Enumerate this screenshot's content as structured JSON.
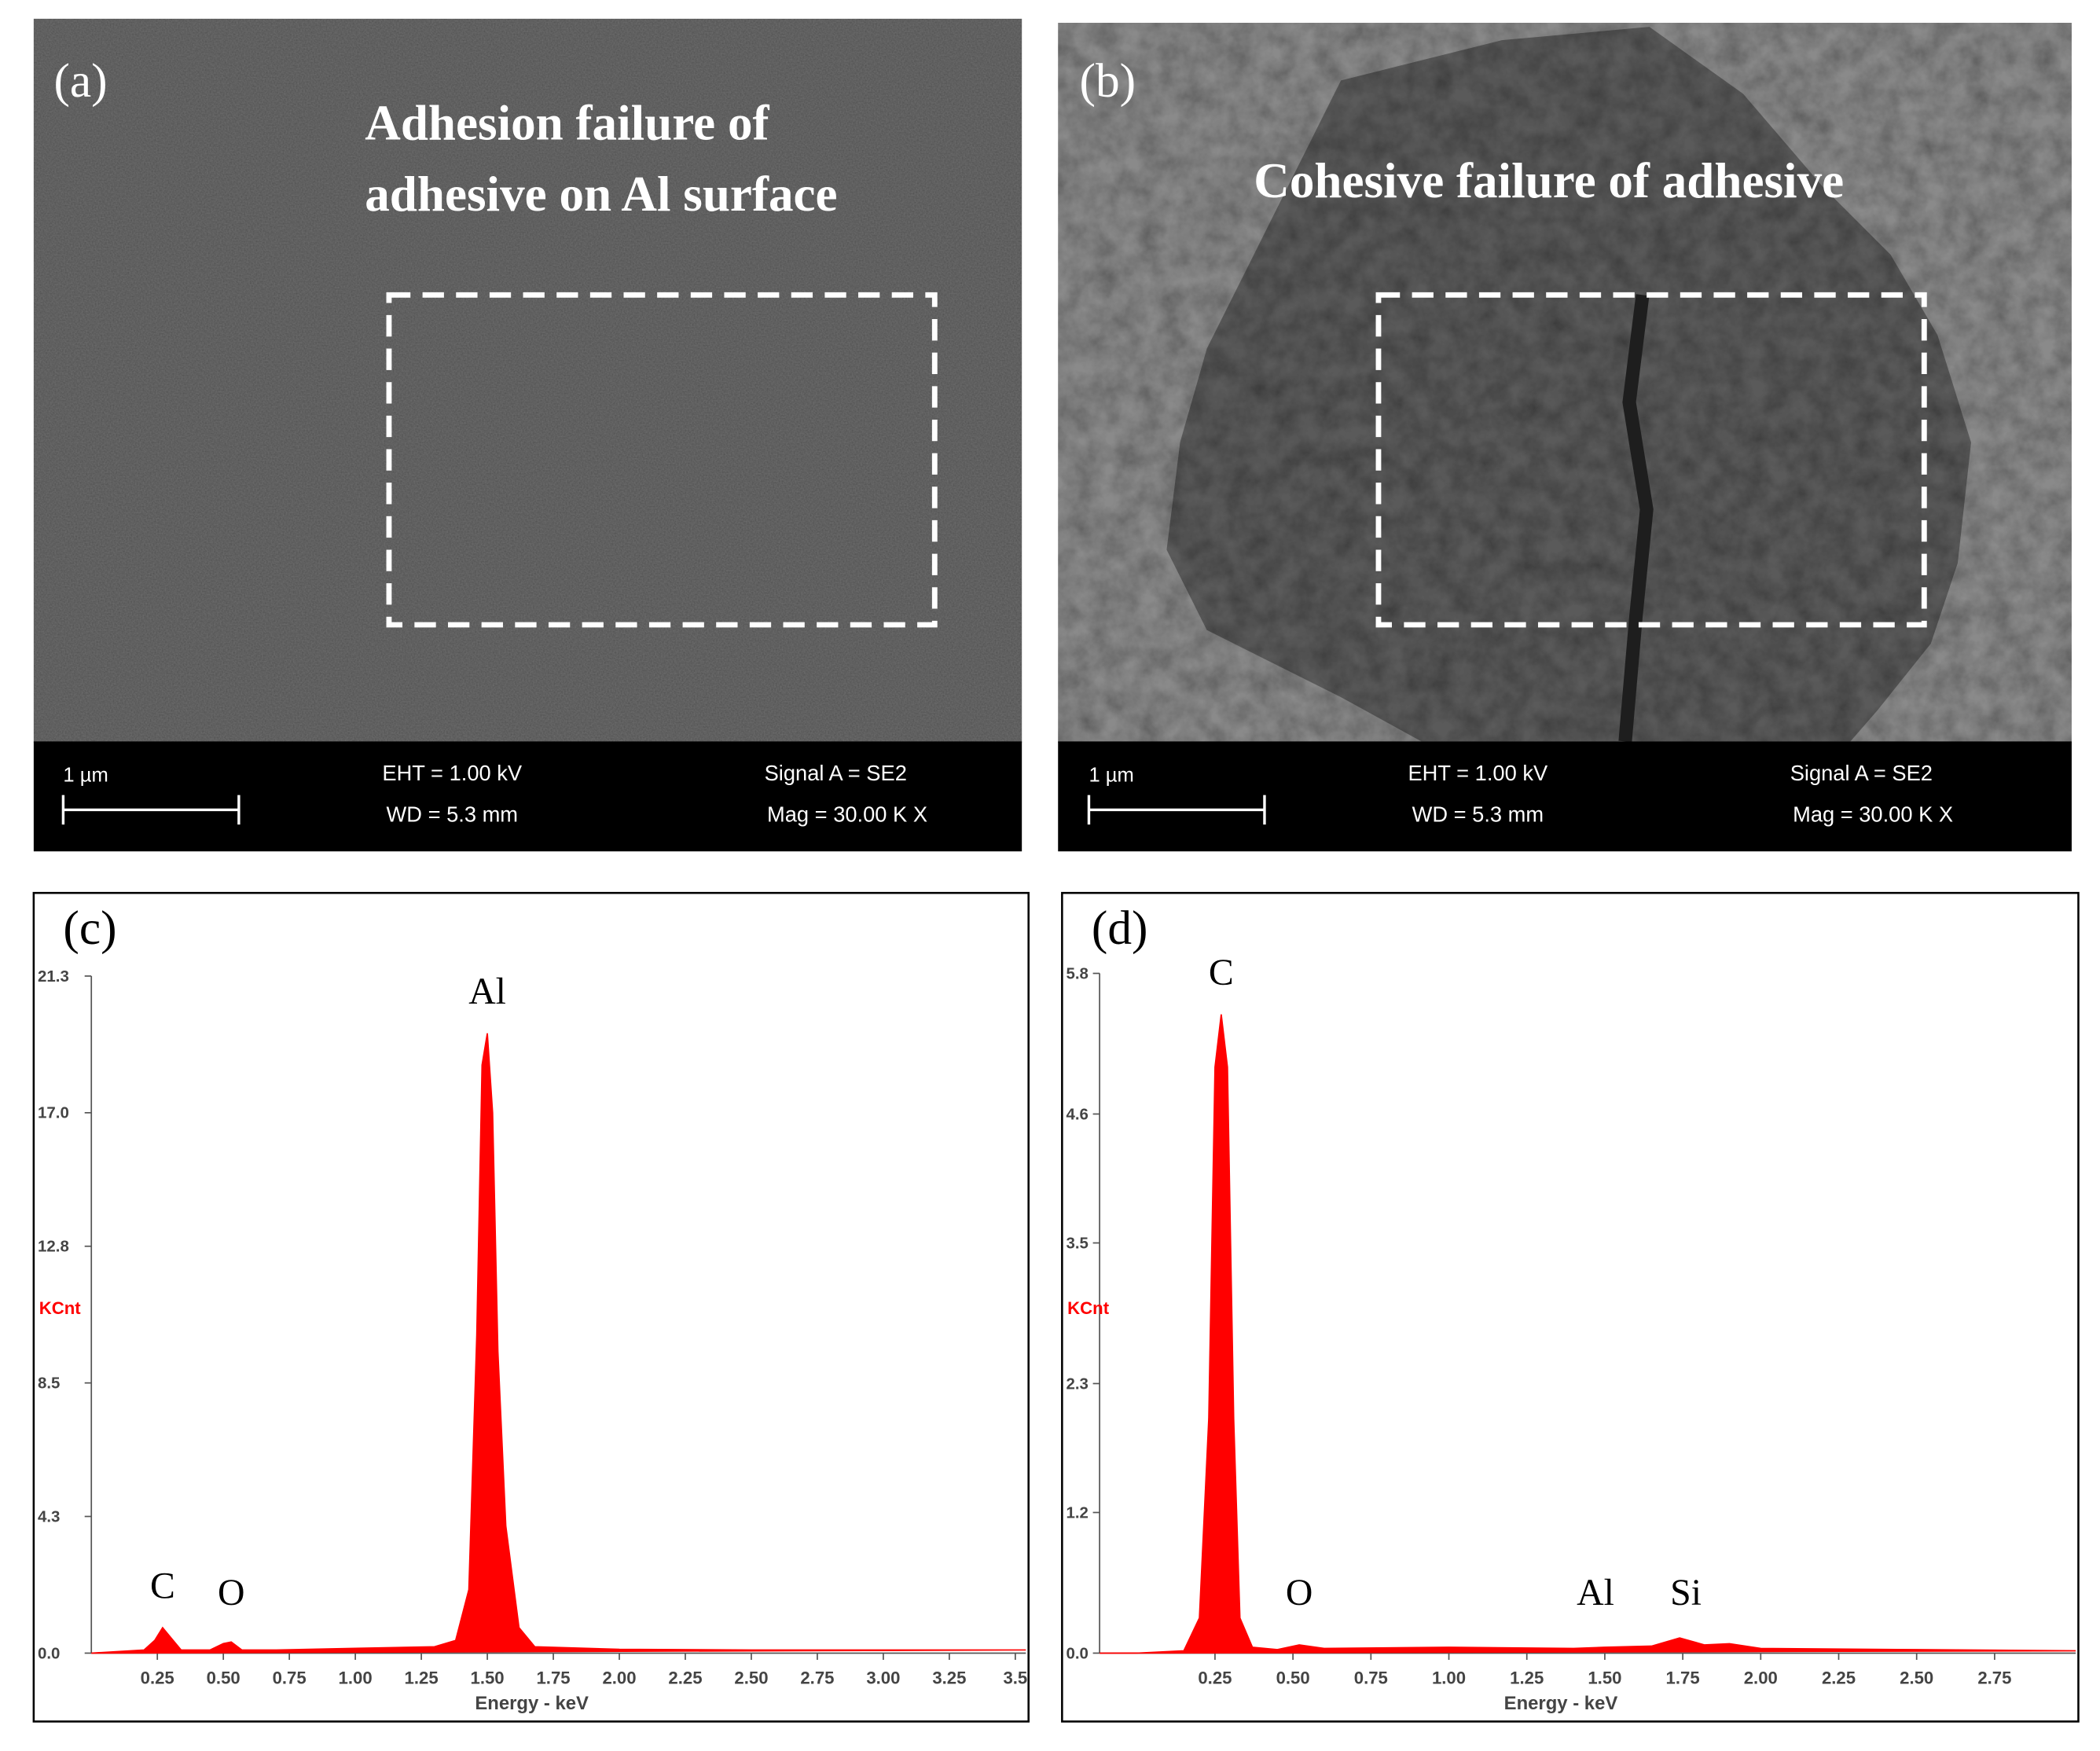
{
  "panels": [
    {
      "label": "(a)",
      "caption": [
        "Adhesion failure of",
        "adhesive on Al surface"
      ],
      "scale_bar": "1 µm",
      "info": [
        "EHT = 1.00 kV",
        "WD = 5.3 mm",
        "Signal A = SE2",
        "Mag = 30.00 K X"
      ]
    },
    {
      "label": "(b)",
      "caption": [
        "Cohesive failure of adhesive"
      ],
      "scale_bar": "1 µm",
      "info": [
        "EHT = 1.00 kV",
        "WD = 5.3 mm",
        "Signal A = SE2",
        "Mag = 30.00 K X"
      ]
    }
  ],
  "chart_data": [
    {
      "type": "area",
      "panel_label": "(c)",
      "xlabel": "Energy - keV",
      "ylabel": "KCnt",
      "color": "#ff0000",
      "x": [
        0,
        0.1,
        0.2,
        0.24,
        0.27,
        0.3,
        0.34,
        0.45,
        0.5,
        0.53,
        0.57,
        0.7,
        1.0,
        1.3,
        1.38,
        1.43,
        1.46,
        1.48,
        1.5,
        1.52,
        1.54,
        1.57,
        1.62,
        1.68,
        2.0,
        2.5,
        3.0,
        3.54
      ],
      "values": [
        0,
        0.05,
        0.1,
        0.4,
        0.8,
        0.5,
        0.1,
        0.1,
        0.3,
        0.35,
        0.1,
        0.1,
        0.15,
        0.2,
        0.4,
        2,
        10,
        18.5,
        19.5,
        17,
        9.5,
        4,
        0.8,
        0.2,
        0.12,
        0.1,
        0.1,
        0.1
      ],
      "xlim": [
        0,
        3.54
      ],
      "ylim": [
        0,
        21.3
      ],
      "xticks": [
        0.25,
        {
          "value": 0.5,
          "label": "0.50"
        },
        0.75,
        {
          "value": 1,
          "label": "1.00"
        },
        1.25,
        {
          "value": 1.5,
          "label": "1.50"
        },
        1.75,
        {
          "value": 2,
          "label": "2.00"
        },
        2.25,
        {
          "value": 2.5,
          "label": "2.50"
        },
        2.75,
        {
          "value": 3,
          "label": "3.00"
        },
        3.25,
        3.5
      ],
      "yticks": [
        {
          "value": 0,
          "label": "0.0"
        },
        4.3,
        8.5,
        12.8,
        {
          "value": 17,
          "label": "17.0"
        },
        21.3
      ],
      "annotations": [
        {
          "text": "C",
          "x": 0.27
        },
        {
          "text": "O",
          "x": 0.53
        },
        {
          "text": "Al",
          "x": 1.5
        }
      ]
    },
    {
      "type": "area",
      "panel_label": "(d)",
      "xlabel": "Energy - keV",
      "ylabel": "KCnt",
      "color": "#ff0000",
      "x": [
        -0.12,
        0,
        0.15,
        0.2,
        0.23,
        0.25,
        0.27,
        0.29,
        0.31,
        0.33,
        0.37,
        0.45,
        0.52,
        0.6,
        1.0,
        1.4,
        1.5,
        1.65,
        1.74,
        1.82,
        1.9,
        2.0,
        2.5,
        3.01
      ],
      "values": [
        0,
        0,
        0.02,
        0.3,
        2,
        5.0,
        5.45,
        5.0,
        2,
        0.3,
        0.05,
        0.03,
        0.07,
        0.04,
        0.05,
        0.04,
        0.05,
        0.06,
        0.13,
        0.07,
        0.08,
        0.04,
        0.03,
        0.02
      ],
      "xlim": [
        -0.12,
        3.01
      ],
      "ylim": [
        0,
        5.8
      ],
      "xticks": [
        0.25,
        {
          "value": 0.5,
          "label": "0.50"
        },
        0.75,
        {
          "value": 1,
          "label": "1.00"
        },
        1.25,
        {
          "value": 1.5,
          "label": "1.50"
        },
        1.75,
        {
          "value": 2,
          "label": "2.00"
        },
        2.25,
        {
          "value": 2.5,
          "label": "2.50"
        },
        2.75
      ],
      "yticks": [
        {
          "value": 0,
          "label": "0.0"
        },
        1.2,
        2.3,
        3.5,
        4.6,
        5.8
      ],
      "annotations": [
        {
          "text": "C",
          "x": 0.27
        },
        {
          "text": "O",
          "x": 0.52
        },
        {
          "text": "Al",
          "x": 1.47
        },
        {
          "text": "Si",
          "x": 1.76
        }
      ]
    }
  ]
}
